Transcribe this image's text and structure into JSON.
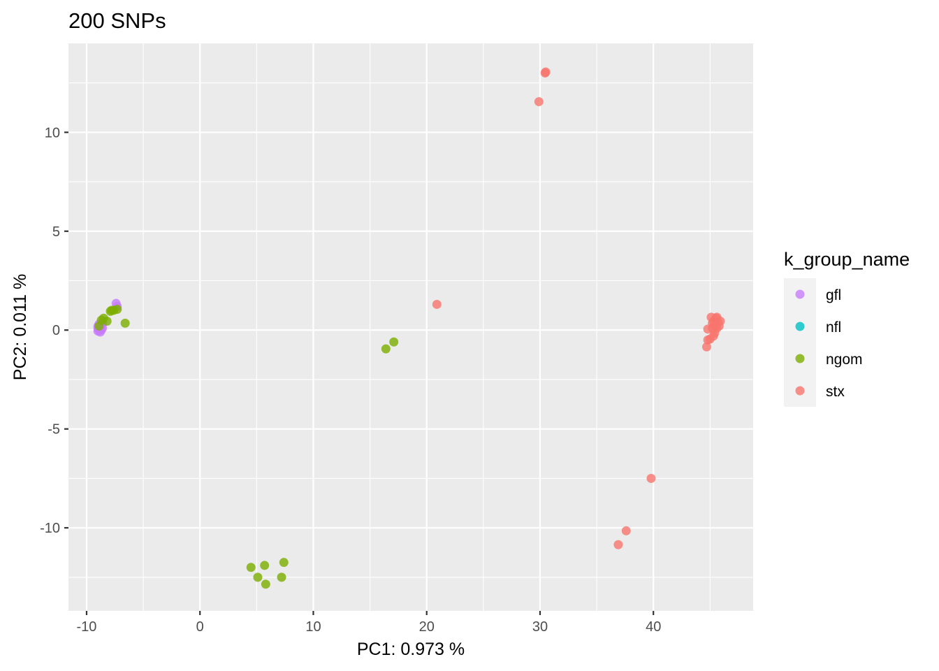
{
  "chart_data": {
    "type": "scatter",
    "title": "200 SNPs",
    "xlabel": "PC1: 0.973 %",
    "ylabel": "PC2: 0.011 %",
    "xlim": [
      -11.6,
      48.8
    ],
    "ylim": [
      -14.2,
      14.5
    ],
    "x_major_ticks": [
      -10,
      0,
      10,
      20,
      30,
      40
    ],
    "x_minor_ticks": [
      -5,
      5,
      15,
      25,
      35,
      45
    ],
    "y_major_ticks": [
      -10,
      -5,
      0,
      5,
      10
    ],
    "y_minor_ticks": [
      -12.5,
      -7.5,
      -2.5,
      2.5,
      7.5,
      12.5
    ],
    "x_tick_labels": [
      "-10",
      "0",
      "10",
      "20",
      "30",
      "40"
    ],
    "y_tick_labels": [
      "-10",
      "-5",
      "0",
      "5",
      "10"
    ],
    "grid": true,
    "legend_position": "right",
    "legend_title": "k_group_name",
    "series": [
      {
        "name": "gfl",
        "color": "#C77CFF",
        "points": [
          [
            -9.0,
            0.1
          ],
          [
            -8.9,
            0.0
          ],
          [
            -8.8,
            -0.1
          ],
          [
            -9.0,
            0.2
          ],
          [
            -8.7,
            0.0
          ],
          [
            -8.9,
            0.3
          ],
          [
            -8.6,
            0.1
          ],
          [
            -8.8,
            0.2
          ],
          [
            -9.0,
            -0.05
          ],
          [
            -8.7,
            0.25
          ],
          [
            -8.9,
            0.05
          ],
          [
            -7.4,
            1.35
          ],
          [
            -7.3,
            1.2
          ],
          [
            -8.6,
            0.35
          ]
        ]
      },
      {
        "name": "nfl",
        "color": "#00BFC4",
        "points": []
      },
      {
        "name": "ngom",
        "color": "#7CAE00",
        "points": [
          [
            -8.7,
            0.5
          ],
          [
            -8.5,
            0.6
          ],
          [
            -8.2,
            0.45
          ],
          [
            -7.9,
            0.95
          ],
          [
            -7.6,
            1.0
          ],
          [
            -7.3,
            1.05
          ],
          [
            -7.8,
            1.0
          ],
          [
            -8.9,
            0.2
          ],
          [
            -6.6,
            0.35
          ],
          [
            16.4,
            -0.95
          ],
          [
            17.1,
            -0.6
          ],
          [
            4.5,
            -12.0
          ],
          [
            5.1,
            -12.5
          ],
          [
            5.7,
            -11.9
          ],
          [
            5.8,
            -12.85
          ],
          [
            7.2,
            -12.5
          ],
          [
            7.4,
            -11.75
          ]
        ]
      },
      {
        "name": "stx",
        "color": "#F8766D",
        "points": [
          [
            30.5,
            13.05
          ],
          [
            30.45,
            13.0
          ],
          [
            29.9,
            11.55
          ],
          [
            20.9,
            1.3
          ],
          [
            39.8,
            -7.5
          ],
          [
            37.6,
            -10.15
          ],
          [
            36.9,
            -10.85
          ],
          [
            44.7,
            -0.85
          ],
          [
            44.8,
            -0.5
          ],
          [
            45.0,
            -0.45
          ],
          [
            44.8,
            0.05
          ],
          [
            45.3,
            -0.3
          ],
          [
            45.2,
            0.1
          ],
          [
            45.4,
            0.2
          ],
          [
            45.1,
            0.65
          ],
          [
            45.5,
            0.6
          ],
          [
            45.7,
            0.4
          ],
          [
            45.9,
            0.45
          ],
          [
            45.6,
            0.1
          ],
          [
            45.3,
            0.45
          ],
          [
            45.8,
            0.2
          ],
          [
            45.2,
            0.35
          ],
          [
            45.6,
            0.65
          ],
          [
            45.4,
            -0.15
          ]
        ]
      }
    ]
  }
}
